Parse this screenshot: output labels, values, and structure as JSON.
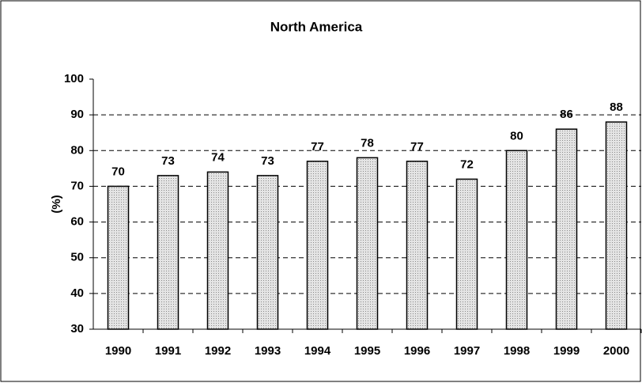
{
  "chart_data": {
    "type": "bar",
    "title": "North America",
    "y_label": "(%)",
    "categories": [
      "1990",
      "1991",
      "1992",
      "1993",
      "1994",
      "1995",
      "1996",
      "1997",
      "1998",
      "1999",
      "2000"
    ],
    "values": [
      70,
      73,
      74,
      73,
      77,
      78,
      77,
      72,
      80,
      86,
      88
    ],
    "color": "#d4d4d4",
    "ylim": [
      30,
      100
    ],
    "yticks": [
      30,
      40,
      50,
      60,
      70,
      80,
      90,
      100
    ],
    "grid": true
  }
}
